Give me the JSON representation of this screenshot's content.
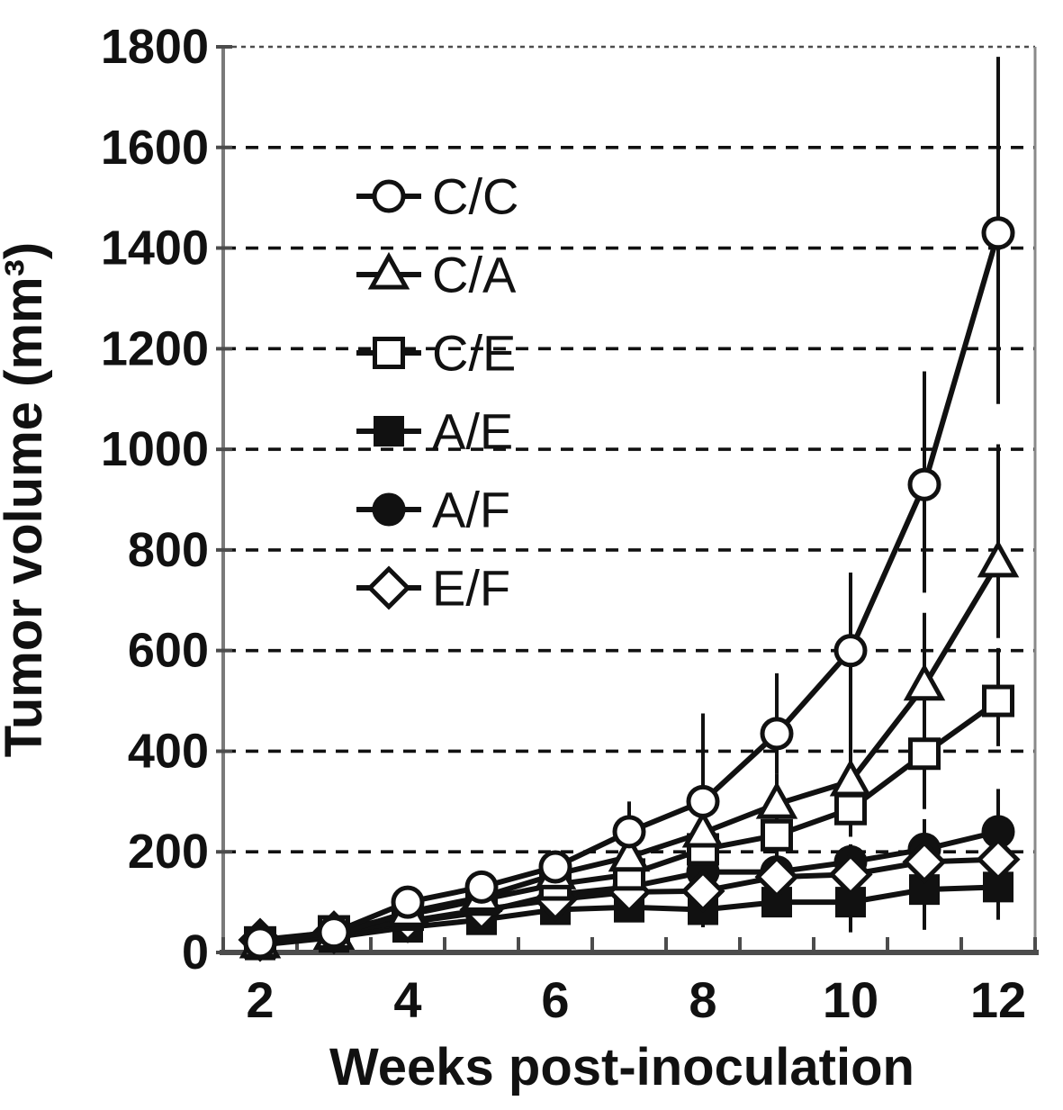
{
  "figure": {
    "background": "#ffffff",
    "ink": "#111111",
    "axis_color": "#5a5a5a",
    "border_color": "#8a8a8a"
  },
  "chart_data": {
    "type": "line",
    "title": "",
    "xlabel": "Weeks post-inoculation",
    "ylabel": "Tumor volume (mm³)",
    "x": [
      2,
      3,
      4,
      5,
      6,
      7,
      8,
      9,
      10,
      11,
      12
    ],
    "x_tick_labels": [
      "2",
      "4",
      "6",
      "8",
      "10",
      "12"
    ],
    "x_tick_label_weeks": [
      2,
      4,
      6,
      8,
      10,
      12
    ],
    "ylim": [
      0,
      1800
    ],
    "ytick_step": 200,
    "grid": "horizontal-dashed",
    "error_bars": true,
    "legend_position": "upper-left-inside",
    "series": [
      {
        "name": "C/C",
        "marker": "circle-open",
        "values": [
          20,
          40,
          100,
          130,
          170,
          240,
          300,
          435,
          600,
          930,
          1430
        ],
        "err_up": [
          5,
          8,
          15,
          20,
          30,
          60,
          175,
          120,
          155,
          225,
          350
        ],
        "err_down": [
          5,
          8,
          15,
          20,
          30,
          40,
          60,
          80,
          175,
          215,
          340
        ]
      },
      {
        "name": "C/A",
        "marker": "triangle-open",
        "values": [
          18,
          35,
          80,
          110,
          155,
          190,
          238,
          295,
          340,
          530,
          775
        ],
        "err_up": [
          4,
          6,
          12,
          18,
          25,
          40,
          60,
          60,
          85,
          145,
          235
        ],
        "err_down": [
          4,
          6,
          12,
          18,
          25,
          30,
          40,
          50,
          60,
          90,
          150
        ]
      },
      {
        "name": "C/E",
        "marker": "square-open",
        "values": [
          20,
          42,
          75,
          105,
          135,
          155,
          205,
          233,
          285,
          395,
          500
        ],
        "err_up": [
          4,
          8,
          12,
          18,
          22,
          30,
          45,
          55,
          65,
          95,
          105
        ],
        "err_down": [
          4,
          8,
          12,
          18,
          22,
          25,
          35,
          45,
          55,
          110,
          90
        ]
      },
      {
        "name": "A/E",
        "marker": "square-filled",
        "values": [
          15,
          30,
          50,
          65,
          85,
          90,
          85,
          100,
          100,
          125,
          130
        ],
        "err_up": [
          3,
          5,
          8,
          10,
          12,
          15,
          18,
          20,
          25,
          30,
          35
        ],
        "err_down": [
          3,
          5,
          8,
          10,
          12,
          15,
          35,
          20,
          60,
          80,
          65
        ]
      },
      {
        "name": "A/F",
        "marker": "circle-filled",
        "values": [
          18,
          35,
          60,
          80,
          115,
          130,
          160,
          160,
          180,
          205,
          240
        ],
        "err_up": [
          4,
          6,
          10,
          12,
          18,
          20,
          30,
          30,
          35,
          60,
          85
        ],
        "err_down": [
          4,
          6,
          10,
          12,
          18,
          20,
          25,
          30,
          35,
          50,
          140
        ]
      },
      {
        "name": "E/F",
        "marker": "diamond-open",
        "values": [
          25,
          40,
          62,
          85,
          105,
          120,
          122,
          150,
          155,
          180,
          185
        ],
        "err_up": [
          4,
          6,
          10,
          14,
          18,
          20,
          25,
          30,
          35,
          45,
          45
        ],
        "err_down": [
          4,
          6,
          10,
          14,
          18,
          20,
          25,
          30,
          35,
          40,
          90
        ]
      }
    ]
  }
}
